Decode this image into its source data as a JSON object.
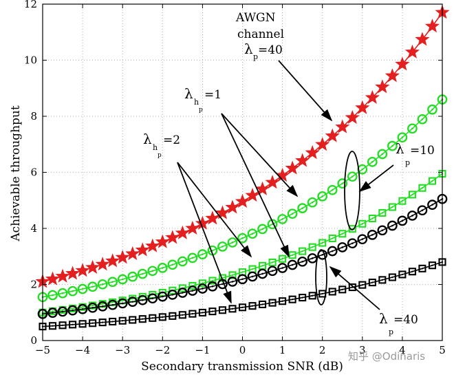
{
  "chart_data": {
    "type": "line",
    "title": "",
    "xlabel": "Secondary transmission SNR (dB)",
    "ylabel": "Achievable throughput",
    "xlim": [
      -5,
      5
    ],
    "ylim": [
      0,
      12
    ],
    "xticks": [
      -5,
      -4,
      -3,
      -2,
      -1,
      0,
      1,
      2,
      3,
      4,
      5
    ],
    "yticks": [
      0,
      2,
      4,
      6,
      8,
      10,
      12
    ],
    "grid": true,
    "series": [
      {
        "marker": "star",
        "color": "#e41f1f",
        "x": [
          -5,
          5
        ],
        "y": [
          2.1,
          11.7
        ]
      },
      {
        "marker": "circle",
        "color": "#22dd22",
        "x": [
          -5,
          5
        ],
        "y": [
          1.55,
          8.6
        ]
      },
      {
        "marker": "square",
        "color": "#22dd22",
        "x": [
          -5,
          5
        ],
        "y": [
          1.0,
          5.95
        ]
      },
      {
        "marker": "circle",
        "color": "#000000",
        "x": [
          -5,
          5
        ],
        "y": [
          0.95,
          5.05
        ]
      },
      {
        "marker": "square",
        "color": "#000000",
        "x": [
          -5,
          5
        ],
        "y": [
          0.5,
          2.8
        ]
      }
    ],
    "annotations": [
      {
        "lines": [
          "AWGN",
          "channel"
        ],
        "name": "awgn-label"
      },
      {
        "symbol": "λ",
        "sub": "p",
        "rest": "=40",
        "name": "awgn-lambda"
      },
      {
        "symbol": "λ",
        "sub": "h",
        "subsub": "p",
        "rest": "=1",
        "name": "lambda-h-1"
      },
      {
        "symbol": "λ",
        "sub": "h",
        "subsub": "p",
        "rest": "=2",
        "name": "lambda-h-2"
      },
      {
        "symbol": "λ",
        "sub": "p",
        "rest": "=10",
        "name": "lambda-p-10"
      },
      {
        "symbol": "λ",
        "sub": "p",
        "rest": "=40",
        "name": "lambda-p-40"
      }
    ]
  },
  "watermark": "知乎 @Odinaris",
  "colors": {
    "red": "#e41f1f",
    "green": "#22dd22",
    "black": "#000000"
  }
}
